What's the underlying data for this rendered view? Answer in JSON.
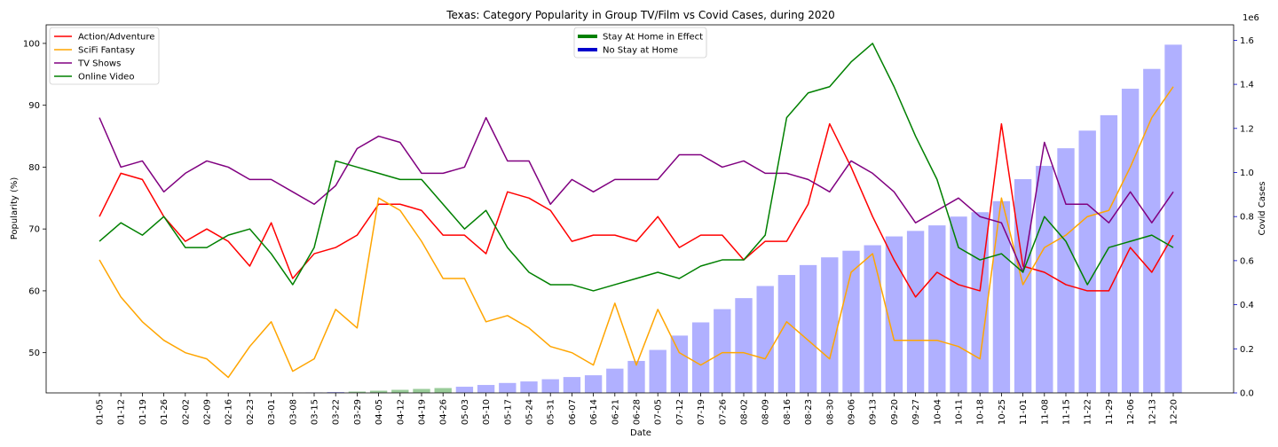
{
  "chart_data": {
    "type": "line",
    "title": "Texas: Category Popularity in Group TV/Film vs Covid Cases, during 2020",
    "xlabel": "Date",
    "ylabel": "Popularity (%)",
    "y2label": "Covid Cases",
    "y2_offset_text": "1e6",
    "ylim": [
      43.5,
      103
    ],
    "y2lim": [
      0,
      1.67
    ],
    "yticks": [
      50,
      60,
      70,
      80,
      90,
      100
    ],
    "y2ticks": [
      "0.0",
      "0.2",
      "0.4",
      "0.6",
      "0.8",
      "1.0",
      "1.2",
      "1.4",
      "1.6"
    ],
    "grid": false,
    "categories": [
      "01-05",
      "01-12",
      "01-19",
      "01-26",
      "02-02",
      "02-09",
      "02-16",
      "02-23",
      "03-01",
      "03-08",
      "03-15",
      "03-22",
      "03-29",
      "04-05",
      "04-12",
      "04-19",
      "04-26",
      "05-03",
      "05-10",
      "05-17",
      "05-24",
      "05-31",
      "06-07",
      "06-14",
      "06-21",
      "06-28",
      "07-05",
      "07-12",
      "07-19",
      "07-26",
      "08-02",
      "08-09",
      "08-16",
      "08-23",
      "08-30",
      "09-06",
      "09-13",
      "09-20",
      "09-27",
      "10-04",
      "10-11",
      "10-18",
      "10-25",
      "11-01",
      "11-08",
      "11-15",
      "11-22",
      "11-29",
      "12-06",
      "12-13",
      "12-20"
    ],
    "series": [
      {
        "name": "Action/Adventure",
        "color": "#ff0000",
        "values": [
          72,
          79,
          78,
          72,
          68,
          70,
          68,
          64,
          71,
          62,
          66,
          67,
          69,
          74,
          74,
          73,
          69,
          69,
          66,
          76,
          75,
          73,
          68,
          69,
          69,
          68,
          72,
          67,
          69,
          69,
          65,
          68,
          68,
          74,
          87,
          80,
          72,
          65,
          59,
          63,
          61,
          60,
          87,
          64,
          63,
          61,
          60,
          60,
          67,
          63,
          69
        ]
      },
      {
        "name": "SciFi Fantasy",
        "color": "#ffa500",
        "values": [
          65,
          59,
          55,
          52,
          50,
          49,
          46,
          51,
          55,
          47,
          49,
          57,
          54,
          75,
          73,
          68,
          62,
          62,
          55,
          56,
          54,
          51,
          50,
          48,
          58,
          48,
          57,
          50,
          48,
          50,
          50,
          49,
          55,
          52,
          49,
          63,
          66,
          52,
          52,
          52,
          51,
          49,
          75,
          61,
          67,
          69,
          72,
          73,
          80,
          88,
          93
        ]
      },
      {
        "name": "TV Shows",
        "color": "#800080",
        "values": [
          88,
          80,
          81,
          76,
          79,
          81,
          80,
          78,
          78,
          76,
          74,
          77,
          83,
          85,
          84,
          79,
          79,
          80,
          88,
          81,
          81,
          74,
          78,
          76,
          78,
          78,
          78,
          82,
          82,
          80,
          81,
          79,
          79,
          78,
          76,
          81,
          79,
          76,
          71,
          73,
          75,
          72,
          71,
          63,
          84,
          74,
          74,
          71,
          76,
          71,
          76
        ]
      },
      {
        "name": "Online Video",
        "color": "#008000",
        "values": [
          68,
          71,
          69,
          72,
          67,
          67,
          69,
          70,
          66,
          61,
          67,
          81,
          80,
          79,
          78,
          78,
          74,
          70,
          73,
          67,
          63,
          61,
          61,
          60,
          61,
          62,
          63,
          62,
          64,
          65,
          65,
          69,
          88,
          92,
          93,
          97,
          100,
          93,
          85,
          78,
          67,
          65,
          66,
          63,
          72,
          68,
          61,
          67,
          68,
          69,
          67
        ]
      }
    ],
    "covid_cases_millions": [
      0,
      0,
      0,
      0,
      0,
      0,
      0,
      0,
      0,
      0.0005,
      0.002,
      0.004,
      0.006,
      0.01,
      0.014,
      0.018,
      0.022,
      0.028,
      0.036,
      0.045,
      0.052,
      0.062,
      0.072,
      0.08,
      0.11,
      0.145,
      0.195,
      0.26,
      0.32,
      0.38,
      0.43,
      0.485,
      0.535,
      0.58,
      0.615,
      0.645,
      0.67,
      0.71,
      0.735,
      0.76,
      0.8,
      0.82,
      0.87,
      0.97,
      1.03,
      1.11,
      1.19,
      1.26,
      1.38,
      1.47,
      1.58
    ],
    "stay_at_home": [
      false,
      false,
      false,
      false,
      false,
      false,
      false,
      false,
      false,
      false,
      false,
      false,
      true,
      true,
      true,
      true,
      true,
      false,
      false,
      false,
      false,
      false,
      false,
      false,
      false,
      false,
      false,
      false,
      false,
      false,
      false,
      false,
      false,
      false,
      false,
      false,
      false,
      false,
      false,
      false,
      false,
      false,
      false,
      false,
      false,
      false,
      false,
      false,
      false,
      false,
      false
    ],
    "bar_colors": {
      "stay_at_home": "#99cc99",
      "no_stay_at_home": "#b0b0ff"
    },
    "legend_lines": {
      "position": "upper-left",
      "entries": [
        "Action/Adventure",
        "SciFi Fantasy",
        "TV Shows",
        "Online Video"
      ]
    },
    "legend_bars": {
      "position": "upper-center",
      "entries": [
        {
          "label": "Stay At Home in Effect",
          "color": "#008000"
        },
        {
          "label": "No Stay at Home",
          "color": "#0000cc"
        }
      ]
    },
    "y2_tick_color": "#0000cc"
  }
}
